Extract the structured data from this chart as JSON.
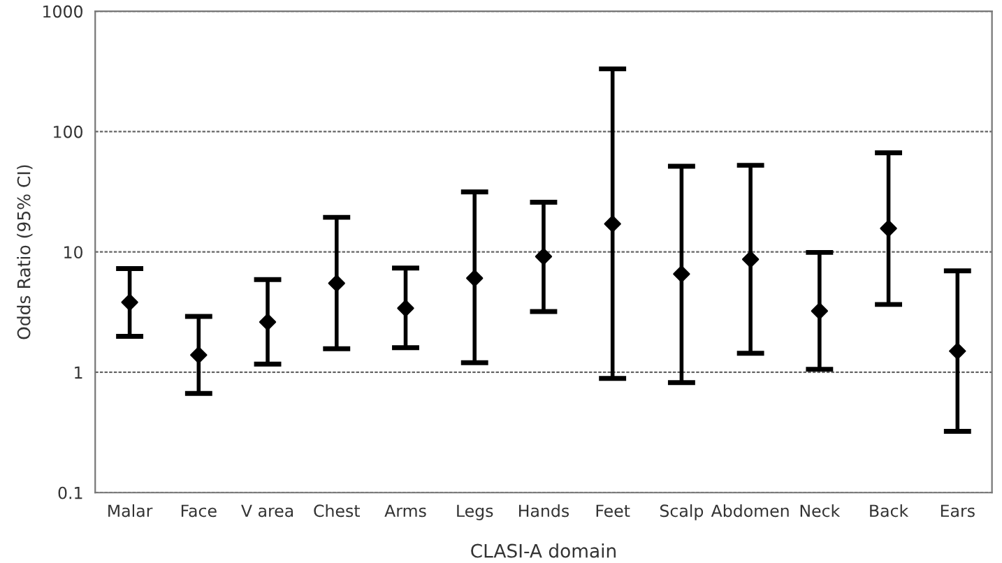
{
  "chart_data": {
    "type": "scatter",
    "xlabel": "CLASI-A domain",
    "ylabel": "Odds Ratio (95% CI)",
    "categories": [
      "Malar",
      "Face",
      "V area",
      "Chest",
      "Arms",
      "Legs",
      "Hands",
      "Feet",
      "Scalp",
      "Abdomen",
      "Neck",
      "Back",
      "Ears"
    ],
    "series": [
      {
        "color": "#000000",
        "values": [
          3.82,
          1.39,
          2.62,
          5.49,
          3.41,
          6.05,
          9.16,
          17.1,
          6.55,
          8.68,
          3.23,
          15.7,
          1.5
        ],
        "errors": [
          [
            1.99,
            7.28
          ],
          [
            0.667,
            2.91
          ],
          [
            1.17,
            5.89
          ],
          [
            1.57,
            19.4
          ],
          [
            1.6,
            7.34
          ],
          [
            1.2,
            31.5
          ],
          [
            3.2,
            25.9
          ],
          [
            0.89,
            332
          ],
          [
            0.82,
            51.6
          ],
          [
            1.44,
            52.5
          ],
          [
            1.06,
            9.91
          ],
          [
            3.66,
            66.6
          ],
          [
            0.323,
            6.96
          ]
        ]
      }
    ],
    "log": "y",
    "ylim": [
      0.1,
      1000
    ],
    "yticks": [
      0.1,
      1,
      10,
      100,
      1000
    ],
    "grid": "y",
    "marker": "diamond"
  }
}
